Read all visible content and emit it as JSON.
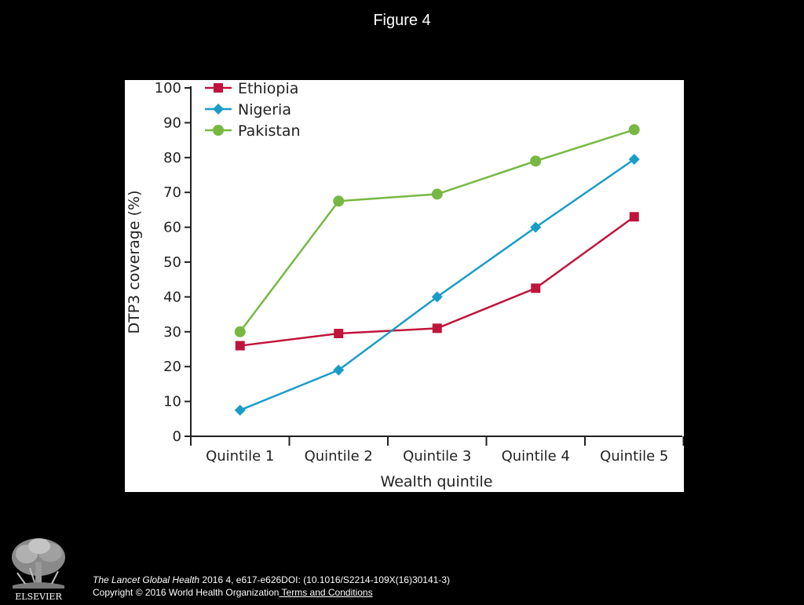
{
  "slide": {
    "title": "Figure 4"
  },
  "chart_data": {
    "type": "line",
    "categories": [
      "Quintile 1",
      "Quintile 2",
      "Quintile 3",
      "Quintile 4",
      "Quintile 5"
    ],
    "series": [
      {
        "name": "Ethiopia",
        "values": [
          26,
          29.5,
          31,
          42.5,
          63
        ],
        "color": "#c0143c",
        "marker": "square"
      },
      {
        "name": "Nigeria",
        "values": [
          7.5,
          19,
          40,
          60,
          79.5
        ],
        "color": "#1a9cc8",
        "marker": "diamond"
      },
      {
        "name": "Pakistan",
        "values": [
          30,
          67.5,
          69.5,
          79,
          88
        ],
        "color": "#77b843",
        "marker": "circle"
      }
    ],
    "xlabel": "Wealth quintile",
    "ylabel": "DTP3 coverage (%)",
    "ylim": [
      0,
      100
    ],
    "yticks": [
      0,
      10,
      20,
      30,
      40,
      50,
      60,
      70,
      80,
      90,
      100
    ],
    "grid": false,
    "legend_position": "top-left"
  },
  "footer": {
    "logo_text": "ELSEVIER",
    "journal": "The Lancet Global Health",
    "citation": " 2016 4, e617-e626DOI: (10.1016/S2214-109X(16)30141-3)",
    "copyright": "Copyright © 2016 World Health Organization",
    "terms_link": " Terms and Conditions"
  }
}
